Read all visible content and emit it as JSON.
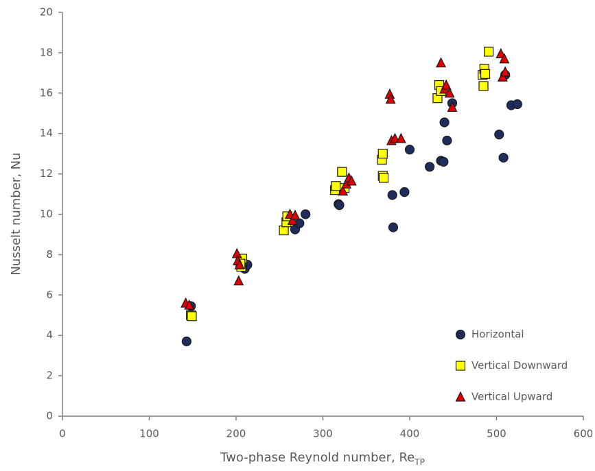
{
  "chart_data": {
    "type": "scatter",
    "xlabel": {
      "text": "Two-phase Reynold number, Re",
      "subscript": "TP"
    },
    "ylabel": "Nusselt number, Nu",
    "xlim": [
      0,
      600
    ],
    "ylim": [
      0,
      20
    ],
    "xticks": [
      0,
      100,
      200,
      300,
      400,
      500,
      600
    ],
    "yticks": [
      0,
      2,
      4,
      6,
      8,
      10,
      12,
      14,
      16,
      18,
      20
    ],
    "grid": false,
    "legend": "lower right",
    "series": [
      {
        "name": "Horizontal",
        "color": "#1f2d5c",
        "marker": "circle",
        "x": [
          143,
          148,
          210,
          213,
          207,
          268,
          273,
          280,
          318,
          319,
          380,
          381,
          394,
          400,
          423,
          436,
          439,
          440,
          443,
          449,
          503,
          508,
          510,
          517,
          524
        ],
        "values": [
          3.7,
          5.45,
          7.3,
          7.5,
          7.4,
          9.25,
          9.55,
          10.0,
          10.5,
          10.45,
          10.95,
          9.35,
          11.1,
          13.2,
          12.35,
          12.65,
          12.6,
          14.55,
          13.65,
          15.5,
          13.95,
          12.8,
          16.9,
          15.4,
          15.45
        ]
      },
      {
        "name": "Vertical Downward",
        "color": "#ffff00",
        "marker": "square",
        "x": [
          148,
          149,
          206,
          207,
          205,
          255,
          258,
          259,
          314,
          315,
          322,
          325,
          368,
          369,
          369,
          370,
          432,
          434,
          436,
          484,
          485,
          486,
          491,
          487
        ],
        "values": [
          5.0,
          4.95,
          7.4,
          7.8,
          7.55,
          9.2,
          9.6,
          9.9,
          11.2,
          11.4,
          12.1,
          11.3,
          12.7,
          13.0,
          11.9,
          11.8,
          15.75,
          16.4,
          16.1,
          16.9,
          16.35,
          17.2,
          18.05,
          16.95
        ]
      },
      {
        "name": "Vertical Upward",
        "color": "#e00000",
        "marker": "triangle",
        "x": [
          142,
          146,
          201,
          202,
          203,
          204,
          262,
          265,
          268,
          323,
          327,
          330,
          333,
          377,
          378,
          379,
          383,
          390,
          436,
          440,
          442,
          446,
          449,
          505,
          507,
          509,
          510
        ],
        "values": [
          5.6,
          5.5,
          8.05,
          7.7,
          6.7,
          7.5,
          10.0,
          9.7,
          9.95,
          11.15,
          11.5,
          11.8,
          11.65,
          15.95,
          15.7,
          13.65,
          13.75,
          13.75,
          17.5,
          16.2,
          16.4,
          16.0,
          15.3,
          17.95,
          16.8,
          17.7,
          17.05
        ]
      }
    ]
  }
}
